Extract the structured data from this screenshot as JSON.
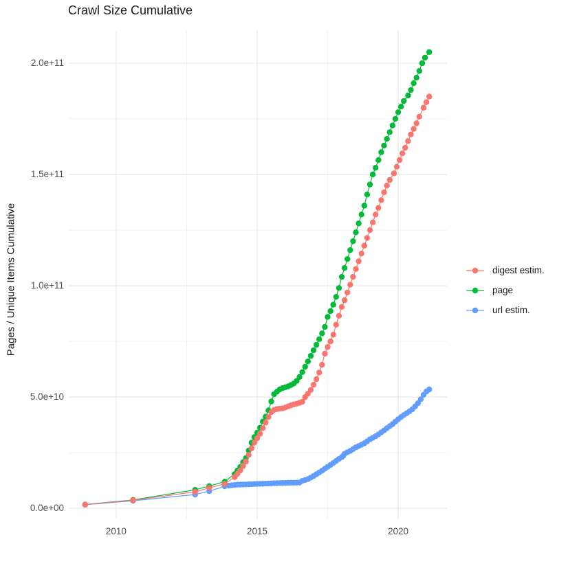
{
  "chart_data": {
    "type": "line",
    "title": "Crawl Size Cumulative",
    "xlabel": "",
    "ylabel": "Pages / Unique Items Cumulative",
    "legend_position": "right",
    "grid": true,
    "grid_major_color": "#e4e4e4",
    "grid_minor_color": "#f2f2f2",
    "background_color": "#ffffff",
    "x_domain": [
      2008.32,
      2021.73
    ],
    "y_domain_e9": [
      -4.6,
      214.5
    ],
    "x_ticks": [
      {
        "value": 2010,
        "label": "2010"
      },
      {
        "value": 2015,
        "label": "2015"
      },
      {
        "value": 2020,
        "label": "2020"
      }
    ],
    "x_minor": [
      2012.5,
      2017.5
    ],
    "y_ticks": [
      {
        "value_e9": 0,
        "label": "0.0e+00"
      },
      {
        "value_e9": 50,
        "label": "5.0e+10"
      },
      {
        "value_e9": 100,
        "label": "1.0e+11"
      },
      {
        "value_e9": 150,
        "label": "1.5e+11"
      },
      {
        "value_e9": 200,
        "label": "2.0e+11"
      }
    ],
    "y_minor_e9": [
      25,
      75,
      125,
      175
    ],
    "units_note": "point values are [year, cumulative count in billions (1e9)]",
    "draw_order": [
      1,
      2,
      0
    ],
    "series": [
      {
        "name": "digest estim.",
        "color": "#F8766D",
        "points": [
          [
            2008.9,
            1.7
          ],
          [
            2010.6,
            3.6
          ],
          [
            2012.8,
            7.4
          ],
          [
            2013.3,
            9.2
          ],
          [
            2013.85,
            11
          ],
          [
            2014.2,
            14
          ],
          [
            2014.3,
            15.5
          ],
          [
            2014.4,
            17
          ],
          [
            2014.5,
            19
          ],
          [
            2014.6,
            21
          ],
          [
            2014.7,
            24
          ],
          [
            2014.8,
            27
          ],
          [
            2014.9,
            29.5
          ],
          [
            2015.0,
            31.5
          ],
          [
            2015.1,
            33.5
          ],
          [
            2015.2,
            36
          ],
          [
            2015.3,
            38.5
          ],
          [
            2015.4,
            41
          ],
          [
            2015.5,
            43.2
          ],
          [
            2015.6,
            44.2
          ],
          [
            2015.7,
            44.6
          ],
          [
            2015.8,
            44.8
          ],
          [
            2015.9,
            44.9
          ],
          [
            2016.0,
            45.3
          ],
          [
            2016.1,
            45.8
          ],
          [
            2016.2,
            46.3
          ],
          [
            2016.3,
            46.7
          ],
          [
            2016.4,
            47
          ],
          [
            2016.5,
            47.4
          ],
          [
            2016.6,
            47.9
          ],
          [
            2016.7,
            50
          ],
          [
            2016.8,
            51.5
          ],
          [
            2016.9,
            53.2
          ],
          [
            2017.0,
            55.5
          ],
          [
            2017.1,
            58
          ],
          [
            2017.2,
            61
          ],
          [
            2017.3,
            64.5
          ],
          [
            2017.4,
            69.5
          ],
          [
            2017.5,
            72.5
          ],
          [
            2017.6,
            75
          ],
          [
            2017.7,
            78
          ],
          [
            2017.8,
            82.5
          ],
          [
            2017.9,
            86.5
          ],
          [
            2018.0,
            90.5
          ],
          [
            2018.1,
            93.5
          ],
          [
            2018.2,
            97
          ],
          [
            2018.3,
            100.5
          ],
          [
            2018.4,
            104
          ],
          [
            2018.5,
            107.5
          ],
          [
            2018.6,
            111
          ],
          [
            2018.7,
            114.5
          ],
          [
            2018.8,
            118
          ],
          [
            2018.9,
            121.5
          ],
          [
            2019.0,
            125
          ],
          [
            2019.1,
            128.5
          ],
          [
            2019.2,
            132
          ],
          [
            2019.3,
            135
          ],
          [
            2019.4,
            138.5
          ],
          [
            2019.5,
            142
          ],
          [
            2019.6,
            145
          ],
          [
            2019.7,
            147.5
          ],
          [
            2019.85,
            150.5
          ],
          [
            2019.95,
            153.5
          ],
          [
            2020.05,
            156.5
          ],
          [
            2020.15,
            159.5
          ],
          [
            2020.25,
            162
          ],
          [
            2020.35,
            165
          ],
          [
            2020.45,
            168
          ],
          [
            2020.55,
            170.5
          ],
          [
            2020.65,
            173
          ],
          [
            2020.75,
            176
          ],
          [
            2020.9,
            180
          ],
          [
            2021.0,
            182.5
          ],
          [
            2021.1,
            185
          ]
        ]
      },
      {
        "name": "page",
        "color": "#00BA38",
        "points": [
          [
            2008.9,
            1.7
          ],
          [
            2010.6,
            3.8
          ],
          [
            2012.8,
            8.3
          ],
          [
            2013.3,
            10
          ],
          [
            2013.85,
            12
          ],
          [
            2014.2,
            15.4
          ],
          [
            2014.3,
            17
          ],
          [
            2014.4,
            18.6
          ],
          [
            2014.5,
            20.7
          ],
          [
            2014.6,
            22.6
          ],
          [
            2014.7,
            26
          ],
          [
            2014.8,
            29.5
          ],
          [
            2014.9,
            32
          ],
          [
            2015.0,
            34
          ],
          [
            2015.1,
            36.2
          ],
          [
            2015.2,
            39
          ],
          [
            2015.3,
            41.2
          ],
          [
            2015.4,
            44
          ],
          [
            2015.5,
            48
          ],
          [
            2015.6,
            51.3
          ],
          [
            2015.7,
            52.4
          ],
          [
            2015.8,
            53.4
          ],
          [
            2015.9,
            54
          ],
          [
            2016.0,
            54.4
          ],
          [
            2016.1,
            54.8
          ],
          [
            2016.2,
            55.4
          ],
          [
            2016.3,
            56.1
          ],
          [
            2016.4,
            57.2
          ],
          [
            2016.5,
            59
          ],
          [
            2016.6,
            61.2
          ],
          [
            2016.7,
            63.6
          ],
          [
            2016.8,
            66
          ],
          [
            2016.9,
            68.5
          ],
          [
            2017.0,
            71
          ],
          [
            2017.1,
            73.5
          ],
          [
            2017.2,
            76
          ],
          [
            2017.3,
            78.6
          ],
          [
            2017.4,
            81.5
          ],
          [
            2017.5,
            86
          ],
          [
            2017.6,
            88.6
          ],
          [
            2017.7,
            91.5
          ],
          [
            2017.8,
            95
          ],
          [
            2017.9,
            99
          ],
          [
            2018.0,
            104
          ],
          [
            2018.1,
            108
          ],
          [
            2018.2,
            112
          ],
          [
            2018.3,
            116
          ],
          [
            2018.4,
            120
          ],
          [
            2018.5,
            124
          ],
          [
            2018.6,
            128
          ],
          [
            2018.7,
            132
          ],
          [
            2018.8,
            136
          ],
          [
            2018.9,
            141
          ],
          [
            2019.0,
            145.5
          ],
          [
            2019.1,
            150
          ],
          [
            2019.2,
            153
          ],
          [
            2019.3,
            156.5
          ],
          [
            2019.4,
            160
          ],
          [
            2019.5,
            163
          ],
          [
            2019.6,
            166
          ],
          [
            2019.7,
            169
          ],
          [
            2019.8,
            172
          ],
          [
            2019.9,
            175
          ],
          [
            2020.0,
            178
          ],
          [
            2020.1,
            180.5
          ],
          [
            2020.2,
            183
          ],
          [
            2020.35,
            185.5
          ],
          [
            2020.45,
            188
          ],
          [
            2020.55,
            191
          ],
          [
            2020.65,
            193.5
          ],
          [
            2020.75,
            196.5
          ],
          [
            2020.85,
            200
          ],
          [
            2020.95,
            202.5
          ],
          [
            2021.1,
            205
          ]
        ]
      },
      {
        "name": "url estim.",
        "color": "#619CFF",
        "points": [
          [
            2008.9,
            1.6
          ],
          [
            2010.6,
            3.4
          ],
          [
            2012.8,
            6.2
          ],
          [
            2013.3,
            7.7
          ],
          [
            2013.85,
            9.9
          ],
          [
            2014.0,
            10.2
          ],
          [
            2014.1,
            10.35
          ],
          [
            2014.2,
            10.5
          ],
          [
            2014.3,
            10.6
          ],
          [
            2014.4,
            10.65
          ],
          [
            2014.5,
            10.7
          ],
          [
            2014.6,
            10.75
          ],
          [
            2014.7,
            10.8
          ],
          [
            2014.8,
            10.85
          ],
          [
            2014.9,
            10.9
          ],
          [
            2015.0,
            10.95
          ],
          [
            2015.1,
            11
          ],
          [
            2015.2,
            11.05
          ],
          [
            2015.3,
            11.1
          ],
          [
            2015.4,
            11.15
          ],
          [
            2015.5,
            11.2
          ],
          [
            2015.6,
            11.25
          ],
          [
            2015.7,
            11.3
          ],
          [
            2015.8,
            11.35
          ],
          [
            2015.9,
            11.4
          ],
          [
            2016.0,
            11.4
          ],
          [
            2016.1,
            11.45
          ],
          [
            2016.2,
            11.5
          ],
          [
            2016.3,
            11.5
          ],
          [
            2016.4,
            11.55
          ],
          [
            2016.5,
            11.6
          ],
          [
            2016.6,
            12.3
          ],
          [
            2016.7,
            12.7
          ],
          [
            2016.8,
            13.1
          ],
          [
            2016.9,
            13.8
          ],
          [
            2017.0,
            14.5
          ],
          [
            2017.1,
            15.3
          ],
          [
            2017.2,
            16.1
          ],
          [
            2017.3,
            16.9
          ],
          [
            2017.4,
            17.8
          ],
          [
            2017.5,
            18.6
          ],
          [
            2017.6,
            19.5
          ],
          [
            2017.7,
            20.4
          ],
          [
            2017.8,
            21.3
          ],
          [
            2017.9,
            22.2
          ],
          [
            2018.0,
            23
          ],
          [
            2018.05,
            23.5
          ],
          [
            2018.1,
            24.5
          ],
          [
            2018.2,
            25.2
          ],
          [
            2018.3,
            25.8
          ],
          [
            2018.4,
            26.6
          ],
          [
            2018.5,
            27.4
          ],
          [
            2018.6,
            28
          ],
          [
            2018.7,
            28.6
          ],
          [
            2018.8,
            29.2
          ],
          [
            2018.9,
            30.1
          ],
          [
            2019.0,
            31
          ],
          [
            2019.1,
            31.7
          ],
          [
            2019.2,
            32.4
          ],
          [
            2019.3,
            33.2
          ],
          [
            2019.4,
            34.1
          ],
          [
            2019.5,
            35
          ],
          [
            2019.6,
            36
          ],
          [
            2019.7,
            36.9
          ],
          [
            2019.8,
            37.8
          ],
          [
            2019.9,
            38.9
          ],
          [
            2020.0,
            40
          ],
          [
            2020.1,
            41
          ],
          [
            2020.2,
            41.9
          ],
          [
            2020.3,
            42.7
          ],
          [
            2020.4,
            43.6
          ],
          [
            2020.5,
            44.5
          ],
          [
            2020.6,
            45.8
          ],
          [
            2020.7,
            47.2
          ],
          [
            2020.8,
            49
          ],
          [
            2020.9,
            51
          ],
          [
            2021.0,
            52.5
          ],
          [
            2021.1,
            53.4
          ]
        ]
      }
    ]
  }
}
